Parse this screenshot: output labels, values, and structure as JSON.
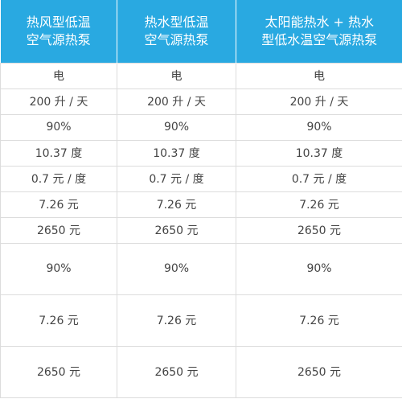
{
  "table": {
    "header": [
      "热风型低温空气源热泵",
      "热水型低温空气源热泵",
      "太阳能热水 + 热水型低水温空气源热泵"
    ],
    "rows": [
      [
        "电",
        "电",
        "电"
      ],
      [
        "200 升 / 天",
        "200 升 / 天",
        "200 升 / 天"
      ],
      [
        "90%",
        "90%",
        "90%"
      ],
      [
        "10.37 度",
        "10.37 度",
        "10.37 度"
      ],
      [
        "0.7 元 / 度",
        "0.7 元 / 度",
        "0.7 元 / 度"
      ],
      [
        "7.26 元",
        "7.26 元",
        "7.26 元"
      ],
      [
        "2650 元",
        "2650 元",
        "2650 元"
      ],
      [
        "90%",
        "90%",
        "90%"
      ],
      [
        "7.26 元",
        "7.26 元",
        "7.26 元"
      ],
      [
        "2650 元",
        "2650 元",
        "2650 元"
      ]
    ]
  }
}
